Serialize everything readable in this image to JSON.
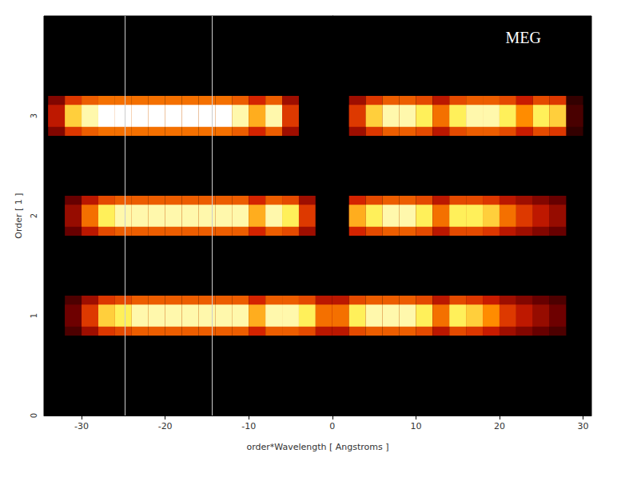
{
  "chart_data": {
    "type": "heatmap",
    "title": "MEG",
    "x_label": "order*Wavelength [ Angstroms ]",
    "y_label": "Order [ 1 ]",
    "xlim": [
      -34.5,
      31
    ],
    "xticks": [
      -30,
      -20,
      -10,
      0,
      10,
      20,
      30
    ],
    "ylim": [
      0,
      4
    ],
    "yticks": [
      0,
      1,
      2,
      3
    ],
    "intensity_range": [
      0,
      1
    ],
    "vertical_lines": [
      -24.8,
      -14.4
    ],
    "bins": [
      -34,
      -32,
      -30,
      -28,
      -26,
      -24,
      -22,
      -20,
      -18,
      -16,
      -14,
      -12,
      -10,
      -8,
      -6,
      -4,
      -2,
      0,
      2,
      4,
      6,
      8,
      10,
      12,
      14,
      16,
      18,
      20,
      22,
      24,
      26,
      28,
      30
    ],
    "series": [
      {
        "name": "3",
        "order": 3,
        "values": [
          0.5,
          0.85,
          0.95,
          1,
          1,
          1,
          1,
          1,
          1,
          1,
          1,
          0.95,
          0.8,
          0.95,
          0.6,
          0,
          0,
          0,
          0.6,
          0.85,
          0.95,
          0.95,
          0.9,
          0.7,
          0.9,
          0.95,
          0.95,
          0.9,
          0.75,
          0.9,
          0.85,
          0.2
        ]
      },
      {
        "name": "2",
        "order": 2,
        "values": [
          0,
          0.4,
          0.7,
          0.9,
          0.95,
          0.95,
          0.95,
          0.95,
          0.95,
          0.95,
          0.95,
          0.95,
          0.8,
          0.95,
          0.9,
          0.6,
          0,
          0,
          0.8,
          0.9,
          0.95,
          0.95,
          0.9,
          0.7,
          0.9,
          0.9,
          0.85,
          0.7,
          0.6,
          0.5,
          0.4,
          0
        ]
      },
      {
        "name": "1",
        "order": 1,
        "values": [
          0,
          0.3,
          0.6,
          0.85,
          0.9,
          0.95,
          0.95,
          0.95,
          0.95,
          0.95,
          0.95,
          0.95,
          0.8,
          0.95,
          0.95,
          0.9,
          0.7,
          0.7,
          0.9,
          0.95,
          0.95,
          0.95,
          0.9,
          0.7,
          0.9,
          0.85,
          0.75,
          0.6,
          0.5,
          0.4,
          0.3,
          0
        ]
      }
    ]
  }
}
